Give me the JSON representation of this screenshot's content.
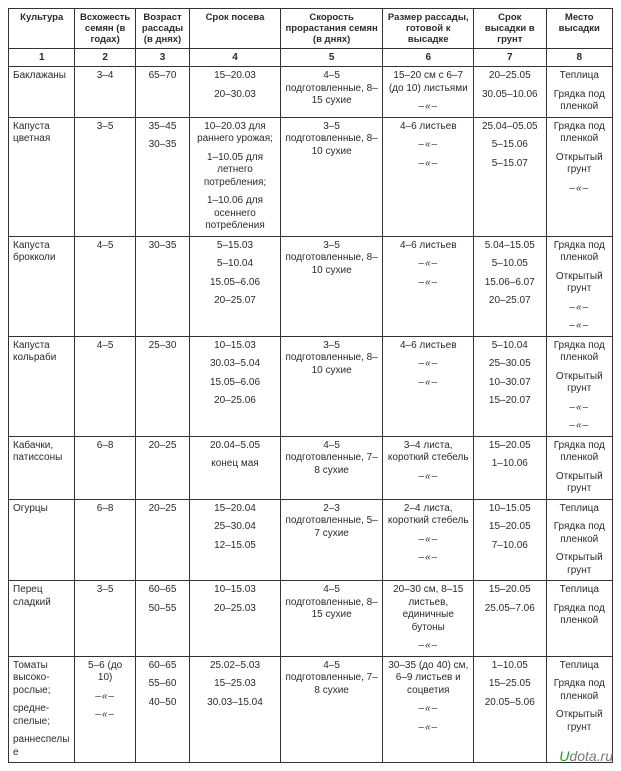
{
  "headers": [
    "Культура",
    "Всхожесть семян (в годах)",
    "Возраст рассады (в днях)",
    "Срок посева",
    "Скорость прорастания семян (в днях)",
    "Размер рассады, готовой к высадке",
    "Срок высадки в грунт",
    "Место высадки"
  ],
  "header_numbers": [
    "1",
    "2",
    "3",
    "4",
    "5",
    "6",
    "7",
    "8"
  ],
  "ditto": "–«–",
  "rows": [
    {
      "crop": [
        "Баклажаны"
      ],
      "germ_years": [
        "3–4"
      ],
      "age_days": [
        "65–70"
      ],
      "sow": [
        "15–20.03",
        "20–30.03"
      ],
      "sprout": [
        "4–5 подготовленные, 8–15 сухие"
      ],
      "size": [
        "15–20 см с 6–7 (до 10) листьями",
        "DITTO"
      ],
      "plant": [
        "20–25.05",
        "30.05–10.06"
      ],
      "place": [
        "Теплица",
        "Грядка под пленкой"
      ]
    },
    {
      "crop": [
        "Капуста цветная"
      ],
      "germ_years": [
        "3–5"
      ],
      "age_days": [
        "35–45",
        "30–35"
      ],
      "sow": [
        "10–20.03 для раннего урожая;",
        "1–10.05 для летнего потребления;",
        "1–10.06 для осеннего потребления"
      ],
      "sprout": [
        "3–5 подготовленные, 8–10 сухие"
      ],
      "size": [
        "4–6 листьев",
        "DITTO",
        "DITTO"
      ],
      "plant": [
        "25.04–05.05",
        "5–15.06",
        "5–15.07"
      ],
      "place": [
        "Грядка под пленкой",
        "Открытый грунт",
        "DITTO"
      ]
    },
    {
      "crop": [
        "Капуста брокколи"
      ],
      "germ_years": [
        "4–5"
      ],
      "age_days": [
        "30–35"
      ],
      "sow": [
        "5–15.03",
        "5–10.04",
        "15.05–6.06",
        "20–25.07"
      ],
      "sprout": [
        "3–5 подготовленные, 8–10 сухие"
      ],
      "size": [
        "4–6 листьев",
        "DITTO",
        "DITTO"
      ],
      "plant": [
        "5.04–15.05",
        "5–10.05",
        "15.06–6.07",
        "20–25.07"
      ],
      "place": [
        "Грядка под пленкой",
        "Открытый грунт",
        "DITTO",
        "DITTO"
      ]
    },
    {
      "crop": [
        "Капуста кольраби"
      ],
      "germ_years": [
        "4–5"
      ],
      "age_days": [
        "25–30"
      ],
      "sow": [
        "10–15.03",
        "30.03–5.04",
        "15.05–6.06",
        "20–25.06"
      ],
      "sprout": [
        "3–5 подготовленные, 8–10 сухие"
      ],
      "size": [
        "4–6 листьев",
        "DITTO",
        "DITTO"
      ],
      "plant": [
        "5–10.04",
        "25–30.05",
        "10–30.07",
        "15–20.07"
      ],
      "place": [
        "Грядка под пленкой",
        "Открытый грунт",
        "DITTO",
        "DITTO"
      ]
    },
    {
      "crop": [
        "Кабачки, патиссоны"
      ],
      "germ_years": [
        "6–8"
      ],
      "age_days": [
        "20–25"
      ],
      "sow": [
        "20.04–5.05",
        "конец мая"
      ],
      "sprout": [
        "4–5 подготовленные, 7–8 сухие"
      ],
      "size": [
        "3–4 листа, короткий стебель",
        "DITTO"
      ],
      "plant": [
        "15–20.05",
        "1–10.06"
      ],
      "place": [
        "Грядка под пленкой",
        "Открытый грунт"
      ]
    },
    {
      "crop": [
        "Огурцы"
      ],
      "germ_years": [
        "6–8"
      ],
      "age_days": [
        "20–25"
      ],
      "sow": [
        "15–20.04",
        "25–30.04",
        "12–15.05"
      ],
      "sprout": [
        "2–3 подготовленные, 5–7 сухие"
      ],
      "size": [
        "2–4 листа, короткий стебель",
        "DITTO",
        "DITTO"
      ],
      "plant": [
        "10–15.05",
        "15–20.05",
        "7–10.06"
      ],
      "place": [
        "Теплица",
        "Грядка под пленкой",
        "Открытый грунт"
      ]
    },
    {
      "crop": [
        "Перец сладкий"
      ],
      "germ_years": [
        "3–5"
      ],
      "age_days": [
        "60–65",
        "50–55"
      ],
      "sow": [
        "10–15.03",
        "20–25.03"
      ],
      "sprout": [
        "4–5 подготовленные, 8–15 сухие"
      ],
      "size": [
        "20–30 см, 8–15 листьев, единичные бутоны",
        "DITTO"
      ],
      "plant": [
        "15–20.05",
        "25.05–7.06"
      ],
      "place": [
        "Теплица",
        "Грядка под пленкой"
      ]
    },
    {
      "crop": [
        "Томаты высоко-рослые;",
        "средне-спелые;",
        "раннеспелые"
      ],
      "germ_years": [
        "5–6 (до 10)",
        "DITTO",
        "DITTO"
      ],
      "age_days": [
        "60–65",
        "55–60",
        "40–50"
      ],
      "sow": [
        "25.02–5.03",
        "15–25.03",
        "30.03–15.04"
      ],
      "sprout": [
        "4–5 подготовленные, 7–8 сухие"
      ],
      "size": [
        "30–35 (до 40) см, 6–9 листьев и соцветия",
        "DITTO",
        "DITTO"
      ],
      "plant": [
        "1–10.05",
        "15–25.05",
        "20.05–5.06"
      ],
      "place": [
        "Теплица",
        "Грядка под пленкой",
        "Открытый грунт"
      ]
    }
  ],
  "watermark_u": "U",
  "watermark_rest": "dota.ru"
}
